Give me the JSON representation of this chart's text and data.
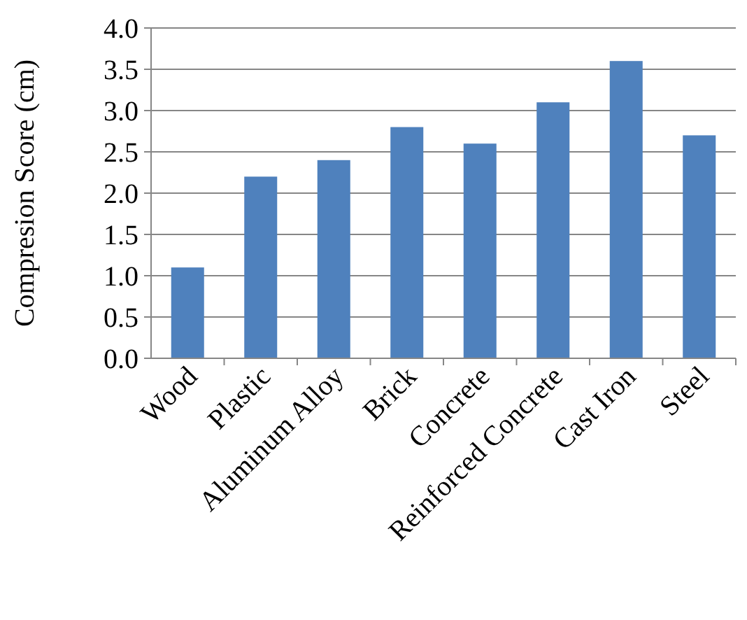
{
  "chart_data": {
    "type": "bar",
    "ylabel": "Compresion Score (cm)",
    "categories": [
      "Wood",
      "Plastic",
      "Aluminum Alloy",
      "Brick",
      "Concrete",
      "Reinforced Concrete",
      "Cast Iron",
      "Steel"
    ],
    "values": [
      1.1,
      2.2,
      2.4,
      2.8,
      2.6,
      3.1,
      3.6,
      2.7
    ],
    "color": "#4f81bd",
    "ylim": [
      0,
      4
    ],
    "yticks": [
      {
        "value": 0,
        "label": "0.0"
      },
      {
        "value": 0.5,
        "label": "0.5"
      },
      {
        "value": 1,
        "label": "1.0"
      },
      {
        "value": 1.5,
        "label": "1.5"
      },
      {
        "value": 2,
        "label": "2.0"
      },
      {
        "value": 2.5,
        "label": "2.5"
      },
      {
        "value": 3,
        "label": "3.0"
      },
      {
        "value": 3.5,
        "label": "3.5"
      },
      {
        "value": 4,
        "label": "4.0"
      }
    ],
    "grid": "y"
  }
}
